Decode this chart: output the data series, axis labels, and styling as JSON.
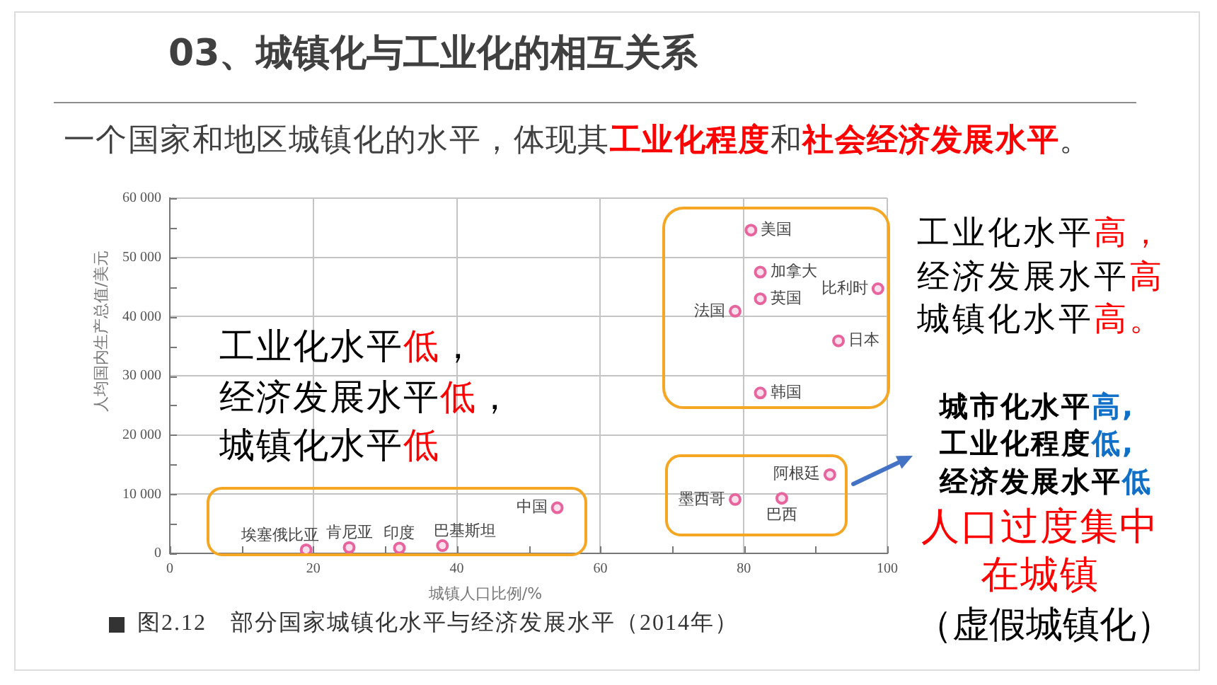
{
  "chart_data": {
    "type": "scatter",
    "title": "03、城镇化与工业化的相互关系",
    "subtitle": "一个国家和地区城镇化的水平，体现其工业化程度和社会经济发展水平。",
    "xlabel": "城镇人口比例/%",
    "ylabel": "人均国内生产总值/美元",
    "x": [
      81,
      82.3,
      98.7,
      82.3,
      78.8,
      93.2,
      82.3,
      92,
      78.8,
      85.3,
      54,
      19,
      25,
      32,
      38
    ],
    "values": [
      54600,
      47500,
      44700,
      43000,
      40900,
      35900,
      27100,
      13300,
      9100,
      9300,
      7700,
      600,
      1000,
      900,
      1300
    ],
    "color": "#e8649e",
    "marker": "circle",
    "grid": true,
    "xlim": [
      0,
      100
    ],
    "xticks": [
      0,
      {
        "value": 10,
        "label": null
      },
      20,
      {
        "value": 30,
        "label": null
      },
      40,
      {
        "value": 50,
        "label": null
      },
      60,
      {
        "value": 70,
        "label": null
      },
      80,
      {
        "value": 90,
        "label": null
      },
      100
    ],
    "ylim": [
      0,
      60000
    ],
    "yticks": [
      0,
      {
        "value": 5000,
        "label": null
      },
      {
        "value": 10000,
        "label": "10 000"
      },
      {
        "value": 15000,
        "label": null
      },
      {
        "value": 20000,
        "label": "20 000"
      },
      {
        "value": 25000,
        "label": null
      },
      {
        "value": 30000,
        "label": "30 000"
      },
      {
        "value": 35000,
        "label": null
      },
      {
        "value": 40000,
        "label": "40 000"
      },
      {
        "value": 45000,
        "label": null
      },
      {
        "value": 50000,
        "label": "50 000"
      },
      {
        "value": 55000,
        "label": null
      },
      {
        "value": 60000,
        "label": "60 000"
      }
    ],
    "annotations": [
      {
        "text": "美国",
        "x": 81,
        "y": 54600
      },
      {
        "text": "加拿大",
        "x": 82.3,
        "y": 47500
      },
      {
        "text": "比利时",
        "x": 98.7,
        "y": 44700
      },
      {
        "text": "英国",
        "x": 82.3,
        "y": 43000
      },
      {
        "text": "法国",
        "x": 78.8,
        "y": 40900
      },
      {
        "text": "日本",
        "x": 93.2,
        "y": 35900
      },
      {
        "text": "韩国",
        "x": 82.3,
        "y": 27100
      },
      {
        "text": "阿根廷",
        "x": 92,
        "y": 13300
      },
      {
        "text": "墨西哥",
        "x": 78.8,
        "y": 9100
      },
      {
        "text": "巴西",
        "x": 85.3,
        "y": 9300
      },
      {
        "text": "中国",
        "x": 54,
        "y": 7700
      },
      {
        "text": "埃塞俄比亚",
        "x": 19,
        "y": 600
      },
      {
        "text": "肯尼亚",
        "x": 25,
        "y": 1000
      },
      {
        "text": "印度",
        "x": 32,
        "y": 900
      },
      {
        "text": "巴基斯坦",
        "x": 38,
        "y": 1300
      },
      "工业化水平低，",
      "经济发展水平低，",
      "城镇化水平低",
      "工业化水平高，",
      "经济发展水平高",
      "城镇化水平高。",
      "城市化水平高,",
      "工业化程度低,",
      "经济发展水平低",
      "人口过度集中在城镇",
      "（虚假城镇化）",
      "图2.12　部分国家城镇化水平与经济发展水平（2014年）"
    ]
  }
}
